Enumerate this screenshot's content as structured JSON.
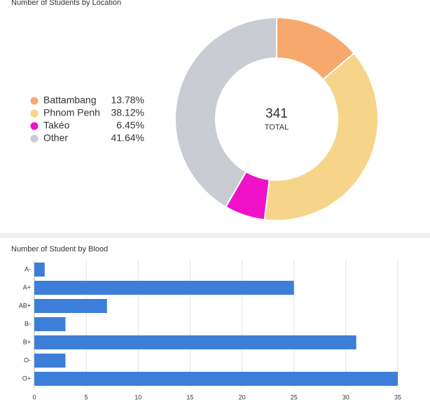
{
  "chart_data": [
    {
      "type": "donut",
      "title": "Number of Students by Location",
      "categories": [
        "Battambang",
        "Phnom Penh",
        "Takéo",
        "Other"
      ],
      "values": [
        13.78,
        38.12,
        6.45,
        41.64
      ],
      "value_labels": [
        "13.78%",
        "38.12%",
        "6.45%",
        "41.64%"
      ],
      "colors": [
        "#f7a86d",
        "#f6d58b",
        "#ef12c9",
        "#c9ccd3"
      ],
      "center_value": 341,
      "center_label": "TOTAL",
      "legend": "left"
    },
    {
      "type": "bar",
      "orientation": "horizontal",
      "title": "Number of Student by Blood",
      "categories": [
        "A-",
        "A+",
        "AB+",
        "B-",
        "B+",
        "O-",
        "O+"
      ],
      "values": [
        1,
        25,
        7,
        3,
        31,
        3,
        35
      ],
      "color": "#3d7fd8",
      "xlim": [
        0,
        35
      ],
      "xticks": [
        0,
        5,
        10,
        15,
        20,
        25,
        30,
        35
      ],
      "grid": true
    }
  ]
}
